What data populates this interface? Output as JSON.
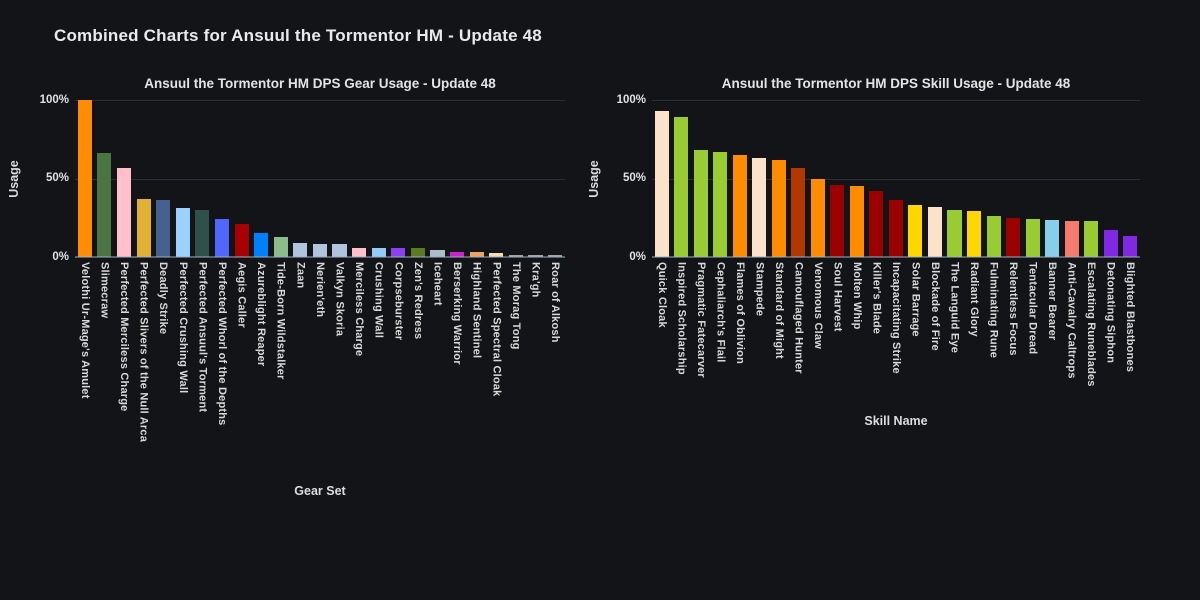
{
  "page": {
    "title": "Combined Charts for Ansuul the Tormentor HM - Update 48"
  },
  "chart_data": [
    {
      "type": "bar",
      "title": "Ansuul the Tormentor HM DPS Gear Usage - Update 48",
      "xlabel": "Gear Set",
      "ylabel": "Usage",
      "ylim": [
        0,
        100
      ],
      "yticks": [
        "0%",
        "50%",
        "100%"
      ],
      "grid": "horizontal",
      "legend": "none",
      "categories": [
        "Velothi Ur-Mage's Amulet",
        "Slimecraw",
        "Perfected Merciless Charge",
        "Perfected Slivers of the Null Arca",
        "Deadly Strike",
        "Perfected Crushing Wall",
        "Perfected Ansuul's Torment",
        "Perfected Whorl of the Depths",
        "Aegis Caller",
        "Azureblight Reaper",
        "Tide-Born Wildstalker",
        "Zaan",
        "Nerien'eth",
        "Valkyn Skoria",
        "Merciless Charge",
        "Crushing Wall",
        "Corpseburster",
        "Zen's Redress",
        "Iceheart",
        "Berserking Warrior",
        "Highland Sentinel",
        "Perfected Spectral Cloak",
        "The Morag Tong",
        "Kra'gh",
        "Roar of Alkosh"
      ],
      "values": [
        100,
        66,
        57,
        37,
        36,
        31,
        30,
        24,
        21,
        15,
        13,
        9,
        8.5,
        8,
        6,
        5.5,
        5.5,
        5.5,
        4.5,
        3,
        3,
        2.5,
        1.5,
        1.5,
        1.5
      ],
      "colors": [
        "#FF8C05",
        "#4A7543",
        "#FFC0CB",
        "#E2B134",
        "#46608F",
        "#9CD0FE",
        "#30504B",
        "#5066FC",
        "#A80103",
        "#0180FE",
        "#8CBB8C",
        "#B0C4DE",
        "#B0C4DE",
        "#B0C4DE",
        "#FFC0CB",
        "#92CCFB",
        "#8B41F0",
        "#5C7A20",
        "#A9BDCB",
        "#CB22CD",
        "#ECA55F",
        "#F4DCB3",
        "#A3A3A3",
        "#A3A3A3",
        "#A3A3A3"
      ]
    },
    {
      "type": "bar",
      "title": "Ansuul the Tormentor HM DPS Skill Usage - Update 48",
      "xlabel": "Skill Name",
      "ylabel": "Usage",
      "ylim": [
        0,
        100
      ],
      "yticks": [
        "0%",
        "50%",
        "100%"
      ],
      "grid": "horizontal",
      "legend": "none",
      "categories": [
        "Quick Cloak",
        "Inspired Scholarship",
        "Pragmatic Fatecarver",
        "Cephaliarch's Flail",
        "Flames of Oblivion",
        "Stampede",
        "Standard of Might",
        "Camouflaged Hunter",
        "Venomous Claw",
        "Soul Harvest",
        "Molten Whip",
        "Killer's Blade",
        "Incapacitating Strike",
        "Solar Barrage",
        "Blockade of Fire",
        "The Languid Eye",
        "Radiant Glory",
        "Fulminating Rune",
        "Relentless Focus",
        "Tentacular Dread",
        "Banner Bearer",
        "Anti-Cavalry Caltrops",
        "Escalating Runeblades",
        "Detonating Siphon",
        "Blighted Blastbones"
      ],
      "values": [
        93,
        89,
        68,
        67,
        65,
        63,
        62,
        57,
        50,
        46,
        45,
        42,
        36,
        33,
        32,
        30,
        29,
        26,
        25,
        24,
        23.5,
        23,
        23,
        17,
        13.5
      ],
      "colors": [
        "#FAE3C8",
        "#99CB32",
        "#99CB32",
        "#99CB32",
        "#FE8C01",
        "#FAE3C8",
        "#FE8C01",
        "#B23802",
        "#FE8C01",
        "#9A0101",
        "#FE8C01",
        "#9A0101",
        "#9A0101",
        "#FED700",
        "#FAE3C8",
        "#99CB32",
        "#FED700",
        "#99CB32",
        "#9A0101",
        "#99CB32",
        "#87CEEB",
        "#F47A6E",
        "#99CB32",
        "#8028E2",
        "#8028E2"
      ]
    }
  ]
}
